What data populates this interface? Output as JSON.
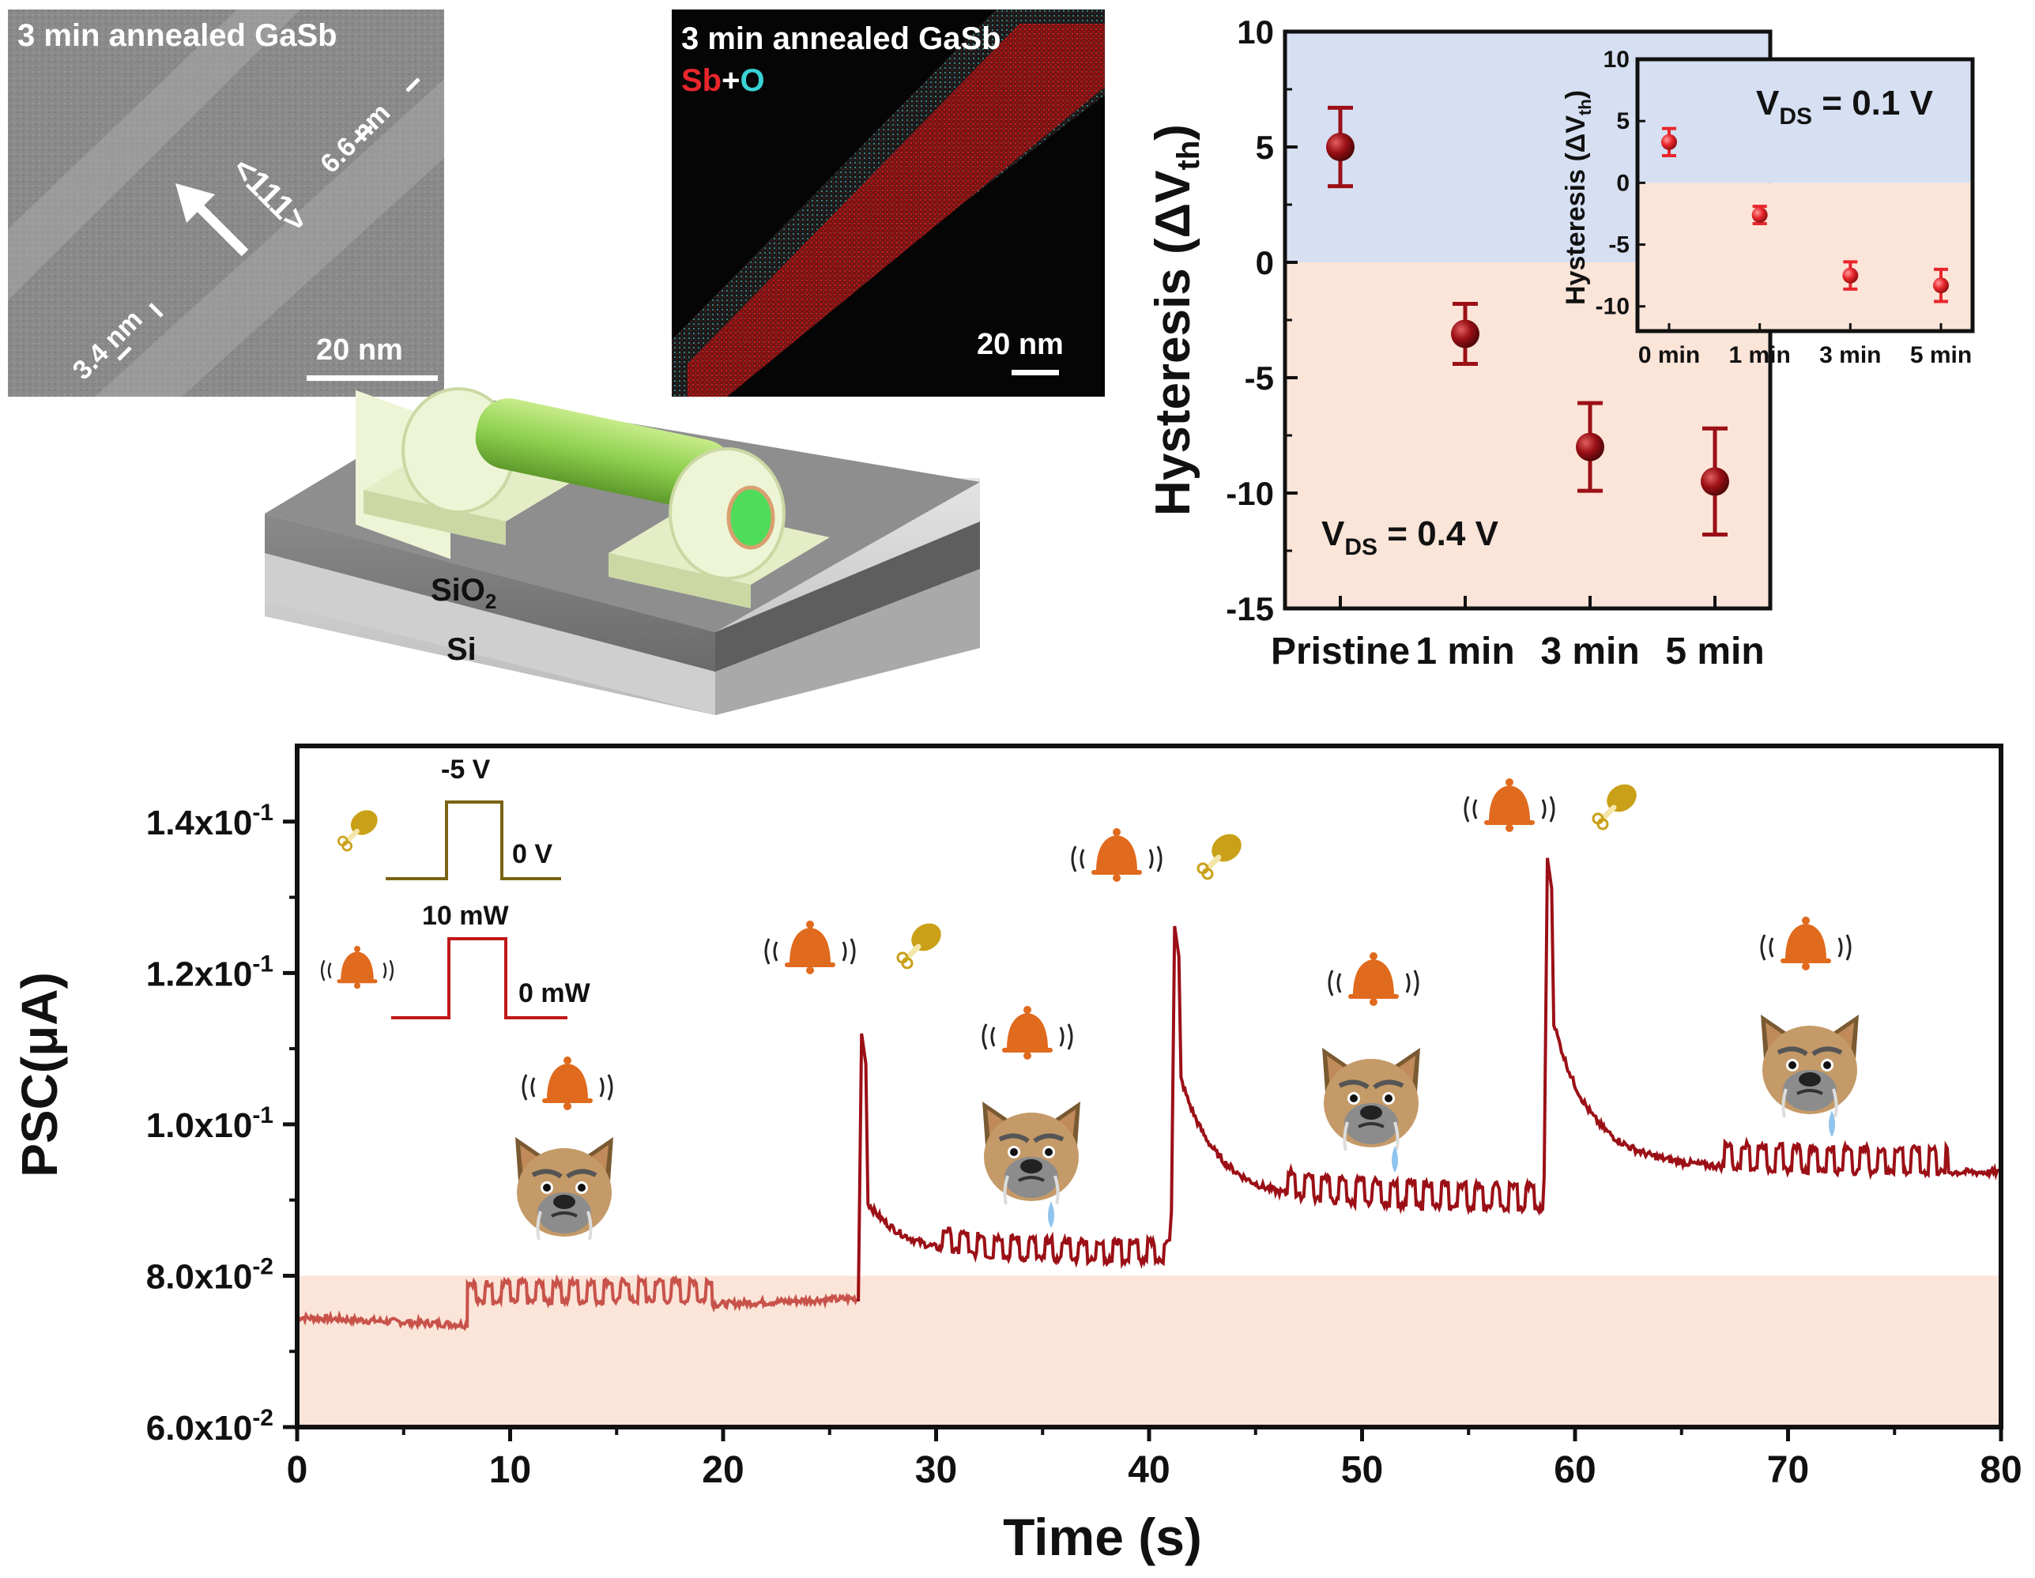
{
  "colors": {
    "data_dark_red": "#9b1016",
    "inset_red": "#e8262c",
    "band_blue": "#d6e0f2",
    "band_peach": "#fbe4d8",
    "stim_olive": "#7a6414",
    "stim_red": "#c01818",
    "bell_orange": "#e06a1e",
    "bone_gold": "#c9a017",
    "device_green": "#8fd14f",
    "contact": "#eef5d6"
  },
  "tem_image": {
    "title": "3 min annealed GaSb",
    "dim_top": "6.6 nm",
    "dim_bottom": "3.4 nm",
    "direction": "<111>",
    "scale": "20 nm"
  },
  "eds_image": {
    "title": "3 min annealed GaSb",
    "legend_sb": "Sb",
    "legend_plus": "+",
    "legend_o": "O",
    "scale": "20 nm"
  },
  "device": {
    "layer_oxide": "SiO",
    "layer_oxide_sub": "2",
    "layer_substrate": "Si"
  },
  "chart_data": [
    {
      "type": "scatter",
      "ylabel": "Hysteresis (ΔV",
      "ylabel_sub": "th",
      "ylabel_close": ")",
      "ylim": [
        -15,
        10
      ],
      "yticks": [
        -15,
        -10,
        -5,
        0,
        5,
        10
      ],
      "categories": [
        "Pristine",
        "1 min",
        "3 min",
        "5 min"
      ],
      "values": [
        5.0,
        -3.1,
        -8.0,
        -9.5
      ],
      "errors": [
        1.7,
        1.3,
        1.9,
        2.3
      ],
      "annotation": "V",
      "annotation_sub": "DS",
      "annotation_rest": " = 0.4 V",
      "inset": {
        "type": "scatter",
        "ylabel": "Hysteresis (ΔV",
        "ylabel_sub": "th",
        "ylabel_close": ")",
        "ylim": [
          -12,
          10
        ],
        "yticks": [
          -10,
          -5,
          0,
          5,
          10
        ],
        "categories": [
          "0 min",
          "1 min",
          "3 min",
          "5 min"
        ],
        "values": [
          3.3,
          -2.6,
          -7.5,
          -8.3
        ],
        "errors": [
          1.1,
          0.7,
          1.1,
          1.3
        ],
        "annotation": "V",
        "annotation_sub": "DS",
        "annotation_rest": " = 0.1 V"
      }
    },
    {
      "type": "line",
      "xlabel": "Time (s)",
      "ylabel": "PSC(μA)",
      "xlim": [
        0,
        80
      ],
      "ylim": [
        0.06,
        0.15
      ],
      "xticks": [
        0,
        10,
        20,
        30,
        40,
        50,
        60,
        70,
        80
      ],
      "yticks": [
        0.06,
        0.08,
        0.1,
        0.12,
        0.14
      ],
      "ytick_labels": [
        "6.0x10",
        "8.0x10",
        "1.0x10",
        "1.2x10",
        "1.4x10"
      ],
      "ytick_exps": [
        "-2",
        "-2",
        "-1",
        "-1",
        "-1"
      ],
      "threshold": 0.08,
      "stimulus_legend": {
        "gate_high": "-5 V",
        "gate_low": "0 V",
        "light_high": "10 mW",
        "light_low": "0 mW"
      },
      "segments": [
        {
          "t0": 0,
          "t1": 8,
          "base0": 0.0745,
          "base1": 0.0735,
          "osc": 0
        },
        {
          "t0": 8,
          "t1": 19.5,
          "base0": 0.0765,
          "base1": 0.0768,
          "osc": 0.0025
        },
        {
          "t0": 19.5,
          "t1": 26.3,
          "base0": 0.0762,
          "base1": 0.077,
          "osc": 0
        },
        {
          "t0": 26.8,
          "t1": 41,
          "base0": 0.0806,
          "base1": 0.0815,
          "osc": 0.0025,
          "peak": 0.112,
          "decay": 0.0055,
          "osc_from": 30.3
        },
        {
          "t0": 41.5,
          "t1": 58.5,
          "base0": 0.0885,
          "base1": 0.0885,
          "osc": 0.003,
          "peak": 0.1262,
          "decay": 0.014,
          "osc_from": 46.5
        },
        {
          "t0": 59,
          "t1": 80,
          "base0": 0.093,
          "base1": 0.0935,
          "osc": 0.003,
          "peak": 0.1352,
          "decay": 0.017,
          "osc_from": 67,
          "osc_to": 77.5
        }
      ]
    }
  ]
}
